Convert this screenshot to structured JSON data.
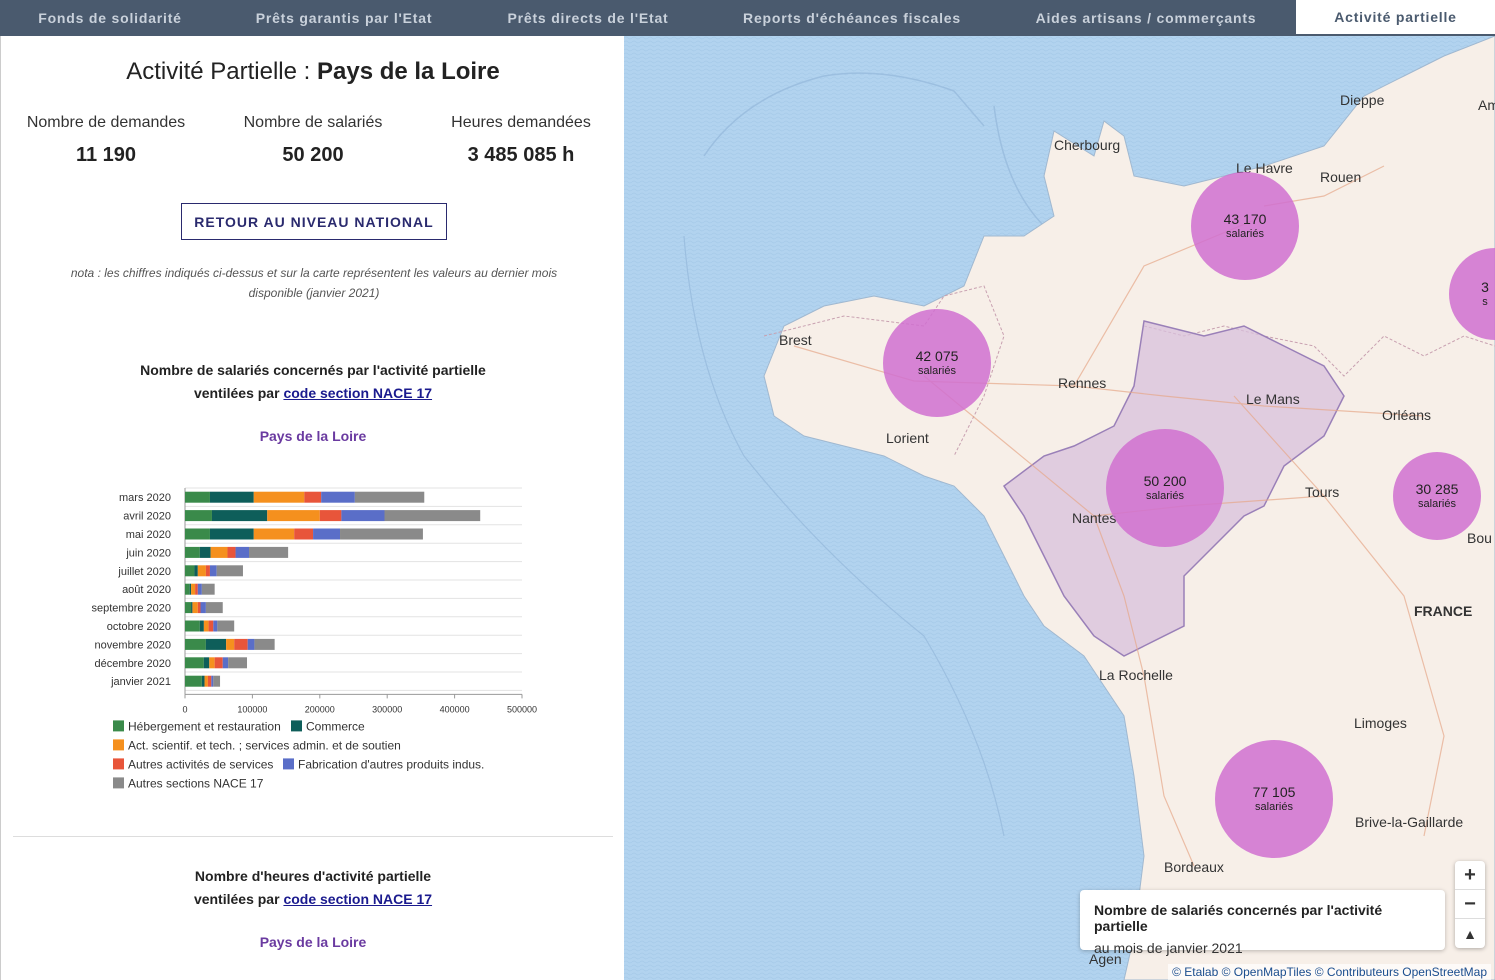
{
  "nav": {
    "tabs": [
      {
        "label": "Fonds de solidarité",
        "width": 220
      },
      {
        "label": "Prêts garantis par l'Etat",
        "width": 248
      },
      {
        "label": "Prêts directs de l'Etat",
        "width": 240
      },
      {
        "label": "Reports d'échéances fiscales",
        "width": 288
      },
      {
        "label": "Aides artisans / commerçants",
        "width": 300
      },
      {
        "label": "Activité partielle",
        "width": 199,
        "active": true
      }
    ]
  },
  "panel": {
    "title_prefix": "Activité Partielle : ",
    "title_region": "Pays de la Loire",
    "stats": [
      {
        "label": "Nombre de demandes",
        "value": "11 190"
      },
      {
        "label": "Nombre de salariés",
        "value": "50 200"
      },
      {
        "label": "Heures demandées",
        "value": "3 485 085 h"
      }
    ],
    "back_button": "RETOUR AU NIVEAU NATIONAL",
    "nota": "nota : les chiffres indiqués ci-dessus et sur la carte représentent les valeurs au dernier mois disponible (janvier 2021)",
    "section1": {
      "line1": "Nombre de salariés concernés par l'activité partielle",
      "line2_prefix": "ventilées par ",
      "link": "code section NACE 17",
      "region": "Pays de la Loire"
    },
    "section2": {
      "line1": "Nombre d'heures d'activité partielle",
      "line2_prefix": "ventilées par ",
      "link": "code section NACE 17",
      "region": "Pays de la Loire"
    }
  },
  "chart_data": {
    "type": "bar",
    "orientation": "horizontal",
    "stacked": true,
    "categories": [
      "mars 2020",
      "avril 2020",
      "mai 2020",
      "juin 2020",
      "juillet 2020",
      "août 2020",
      "septembre 2020",
      "octobre 2020",
      "novembre 2020",
      "décembre 2020",
      "janvier 2021"
    ],
    "xlim": [
      0,
      500000
    ],
    "xticks": [
      "0",
      "100000",
      "200000",
      "300000",
      "400000",
      "500000"
    ],
    "series": [
      {
        "name": "Hébergement et restauration",
        "color": "#3a8a4a",
        "values": [
          37000,
          40000,
          37000,
          22000,
          14000,
          7000,
          9000,
          22000,
          31000,
          28000,
          25000
        ]
      },
      {
        "name": "Commerce",
        "color": "#0e5e5a",
        "values": [
          65000,
          82000,
          65000,
          16000,
          5000,
          2000,
          2000,
          6000,
          30000,
          8000,
          4000
        ]
      },
      {
        "name": "Act. scientif. et tech. ; services admin. et de soutien",
        "color": "#f5901e",
        "values": [
          75000,
          78000,
          60000,
          25000,
          12000,
          6000,
          8000,
          7000,
          12000,
          8000,
          5000
        ]
      },
      {
        "name": "Autres activités de services",
        "color": "#e8553a",
        "values": [
          25000,
          32000,
          28000,
          12000,
          6000,
          4000,
          4000,
          7000,
          20000,
          12000,
          5000
        ]
      },
      {
        "name": "Fabrication d'autres produits indus.",
        "color": "#5a6ec8",
        "values": [
          50000,
          64000,
          40000,
          20000,
          10000,
          6000,
          8000,
          6000,
          10000,
          8000,
          3000
        ]
      },
      {
        "name": "Autres sections NACE 17",
        "color": "#8a8a8a",
        "values": [
          103000,
          142000,
          123000,
          58000,
          39000,
          19000,
          25000,
          25000,
          30000,
          28000,
          10000
        ]
      }
    ],
    "legend_placement": "bottom",
    "grid": true
  },
  "map": {
    "cities": [
      {
        "name": "Dieppe"
      },
      {
        "name": "Amie"
      },
      {
        "name": "Cherbourg"
      },
      {
        "name": "Le Havre"
      },
      {
        "name": "Rouen"
      },
      {
        "name": "Brest"
      },
      {
        "name": "Rennes"
      },
      {
        "name": "Le Mans"
      },
      {
        "name": "Orléans"
      },
      {
        "name": "Lorient"
      },
      {
        "name": "Tours"
      },
      {
        "name": "Nantes"
      },
      {
        "name": "Bou"
      },
      {
        "name": "FRANCE"
      },
      {
        "name": "La Rochelle"
      },
      {
        "name": "Limoges"
      },
      {
        "name": "Brive-la-Gaillarde"
      },
      {
        "name": "Bordeaux"
      },
      {
        "name": "Agen"
      }
    ],
    "bubbles": [
      {
        "value": "43 170",
        "unit": "salariés"
      },
      {
        "value": "42 075",
        "unit": "salariés"
      },
      {
        "value": "50 200",
        "unit": "salariés"
      },
      {
        "value": "30 285",
        "unit": "salariés"
      },
      {
        "value": "77 105",
        "unit": "salariés"
      },
      {
        "value": "3",
        "unit": "s"
      }
    ],
    "bubble_color": "#d070d0",
    "selected_region_color": "#c8a8d8",
    "zoom_in": "+",
    "zoom_out": "−",
    "reset_north": "▲",
    "legend": {
      "title": "Nombre de salariés concernés par l'activité partielle",
      "subtitle": "au mois de janvier 2021"
    },
    "attribution": [
      "© Etalab",
      "© OpenMapTiles",
      "© Contributeurs OpenStreetMap"
    ]
  }
}
